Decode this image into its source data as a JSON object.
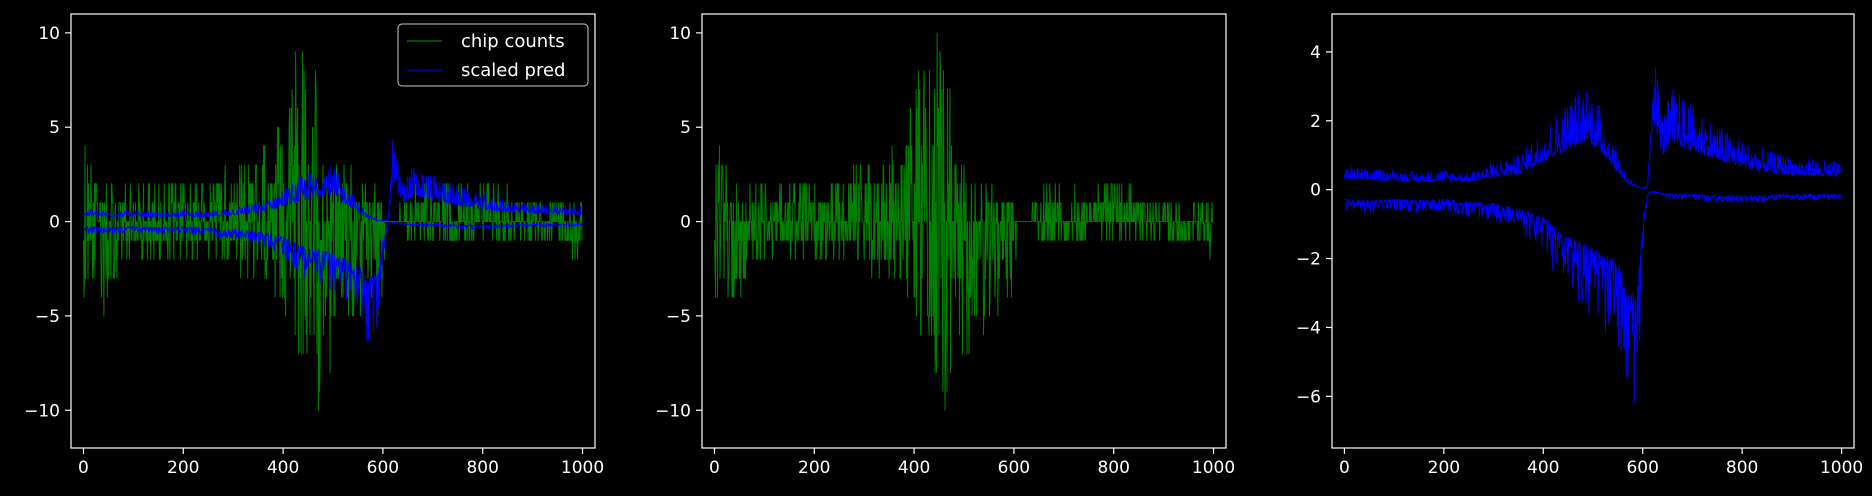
{
  "figure": {
    "background": "#000000",
    "axis_color": "#ffffff",
    "text_color": "#ffffff"
  },
  "chart_data": [
    {
      "type": "line",
      "title": "",
      "xlabel": "",
      "ylabel": "",
      "xlim": [
        -25,
        1025
      ],
      "ylim": [
        -12,
        11
      ],
      "xticks": [
        0,
        200,
        400,
        600,
        800,
        1000
      ],
      "yticks": [
        -10,
        -5,
        0,
        5,
        10
      ],
      "xtick_labels": [
        "0",
        "200",
        "400",
        "600",
        "800",
        "1000"
      ],
      "ytick_labels": [
        "−10",
        "−5",
        "0",
        "5",
        "10"
      ],
      "grid": false,
      "legend": {
        "placement": "top-right",
        "entries": [
          {
            "label": "chip counts",
            "color": "#008000"
          },
          {
            "label": "scaled pred",
            "color": "#0000ff"
          }
        ]
      },
      "series": [
        {
          "name": "chip counts",
          "color": "#008000",
          "kind": "counts",
          "x": [
            0,
            20,
            40,
            80,
            120,
            160,
            200,
            240,
            280,
            320,
            360,
            380,
            400,
            420,
            440,
            460,
            470,
            480,
            500,
            520,
            540,
            560,
            580,
            600,
            610,
            620,
            660,
            700,
            760,
            820,
            880,
            940,
            999
          ],
          "upper": [
            5,
            3,
            2,
            2,
            2,
            2,
            3,
            2,
            3,
            3,
            4,
            5,
            7,
            9,
            10,
            10,
            8,
            6,
            3,
            3,
            3,
            2,
            2,
            1,
            0,
            0,
            2,
            2,
            2,
            2,
            1,
            1,
            1
          ],
          "lower": [
            -4,
            -3,
            -5,
            -2,
            -2,
            -2,
            -2,
            -2,
            -2,
            -3,
            -3,
            -4,
            -5,
            -7,
            -8,
            -10,
            -11,
            -9,
            -8,
            -6,
            -6,
            -5,
            -5,
            -5,
            0,
            0,
            -1,
            -1,
            -1,
            -1,
            -1,
            -1,
            -2
          ]
        },
        {
          "name": "scaled pred",
          "color": "#0000ff",
          "kind": "band",
          "x": [
            0,
            50,
            100,
            150,
            200,
            250,
            300,
            350,
            400,
            430,
            460,
            490,
            520,
            550,
            570,
            590,
            600,
            610,
            620,
            640,
            660,
            700,
            760,
            820,
            880,
            940,
            999
          ],
          "upper": [
            0.7,
            0.6,
            0.6,
            0.5,
            0.6,
            0.5,
            0.8,
            1.0,
            1.8,
            2.3,
            2.8,
            3.2,
            2.3,
            1.1,
            0.4,
            0.1,
            0.05,
            0.1,
            4.6,
            2.2,
            3.0,
            2.5,
            1.8,
            1.3,
            1.0,
            0.9,
            0.8
          ],
          "lower": [
            -0.6,
            -0.7,
            -0.6,
            -0.7,
            -0.6,
            -0.8,
            -0.9,
            -1.2,
            -1.8,
            -2.7,
            -3.2,
            -3.6,
            -4.2,
            -4.6,
            -6.9,
            -6.2,
            -2.0,
            -0.2,
            -0.1,
            -0.2,
            -0.3,
            -0.3,
            -0.4,
            -0.4,
            -0.3,
            -0.3,
            -0.3
          ]
        }
      ]
    },
    {
      "type": "line",
      "title": "",
      "xlabel": "",
      "ylabel": "",
      "xlim": [
        -25,
        1025
      ],
      "ylim": [
        -12,
        11
      ],
      "xticks": [
        0,
        200,
        400,
        600,
        800,
        1000
      ],
      "yticks": [
        -10,
        -5,
        0,
        5,
        10
      ],
      "xtick_labels": [
        "0",
        "200",
        "400",
        "600",
        "800",
        "1000"
      ],
      "ytick_labels": [
        "−10",
        "−5",
        "0",
        "5",
        "10"
      ],
      "grid": false,
      "series": [
        {
          "color": "#008000",
          "kind": "counts",
          "x": [
            0,
            20,
            40,
            80,
            120,
            160,
            200,
            240,
            280,
            320,
            360,
            380,
            400,
            420,
            440,
            460,
            470,
            480,
            500,
            520,
            540,
            560,
            580,
            600,
            610,
            620,
            660,
            700,
            760,
            820,
            880,
            940,
            999
          ],
          "upper": [
            5,
            3,
            2,
            2,
            2,
            2,
            3,
            2,
            3,
            3,
            4,
            5,
            7,
            9,
            10,
            10,
            8,
            6,
            3,
            3,
            3,
            2,
            2,
            1,
            0,
            0,
            2,
            2,
            2,
            2,
            1,
            1,
            1
          ],
          "lower": [
            -4,
            -3,
            -5,
            -2,
            -2,
            -2,
            -2,
            -2,
            -2,
            -3,
            -3,
            -4,
            -5,
            -7,
            -8,
            -10,
            -11,
            -9,
            -8,
            -6,
            -6,
            -5,
            -5,
            -5,
            0,
            0,
            -1,
            -1,
            -1,
            -1,
            -1,
            -1,
            -2
          ]
        }
      ]
    },
    {
      "type": "line",
      "title": "",
      "xlabel": "",
      "ylabel": "",
      "xlim": [
        -25,
        1025
      ],
      "ylim": [
        -7.5,
        5.1
      ],
      "xticks": [
        0,
        200,
        400,
        600,
        800,
        1000
      ],
      "yticks": [
        -6,
        -4,
        -2,
        0,
        2,
        4
      ],
      "xtick_labels": [
        "0",
        "200",
        "400",
        "600",
        "800",
        "1000"
      ],
      "ytick_labels": [
        "−6",
        "−4",
        "−2",
        "0",
        "2",
        "4"
      ],
      "grid": false,
      "series": [
        {
          "color": "#0000ff",
          "kind": "band",
          "x": [
            0,
            50,
            100,
            150,
            200,
            250,
            300,
            350,
            400,
            430,
            460,
            490,
            520,
            550,
            570,
            590,
            600,
            610,
            620,
            640,
            660,
            700,
            760,
            820,
            880,
            940,
            999
          ],
          "upper": [
            0.7,
            0.6,
            0.6,
            0.5,
            0.6,
            0.5,
            0.8,
            1.0,
            1.8,
            2.3,
            2.8,
            3.2,
            2.3,
            1.1,
            0.4,
            0.1,
            0.05,
            0.1,
            4.6,
            2.2,
            3.0,
            2.5,
            1.8,
            1.3,
            1.0,
            0.9,
            0.8
          ],
          "lower": [
            -0.6,
            -0.7,
            -0.6,
            -0.7,
            -0.6,
            -0.8,
            -0.9,
            -1.2,
            -1.8,
            -2.7,
            -3.2,
            -3.6,
            -4.2,
            -4.6,
            -6.9,
            -6.2,
            -2.0,
            -0.2,
            -0.1,
            -0.2,
            -0.3,
            -0.3,
            -0.4,
            -0.4,
            -0.3,
            -0.3,
            -0.3
          ]
        }
      ]
    }
  ]
}
